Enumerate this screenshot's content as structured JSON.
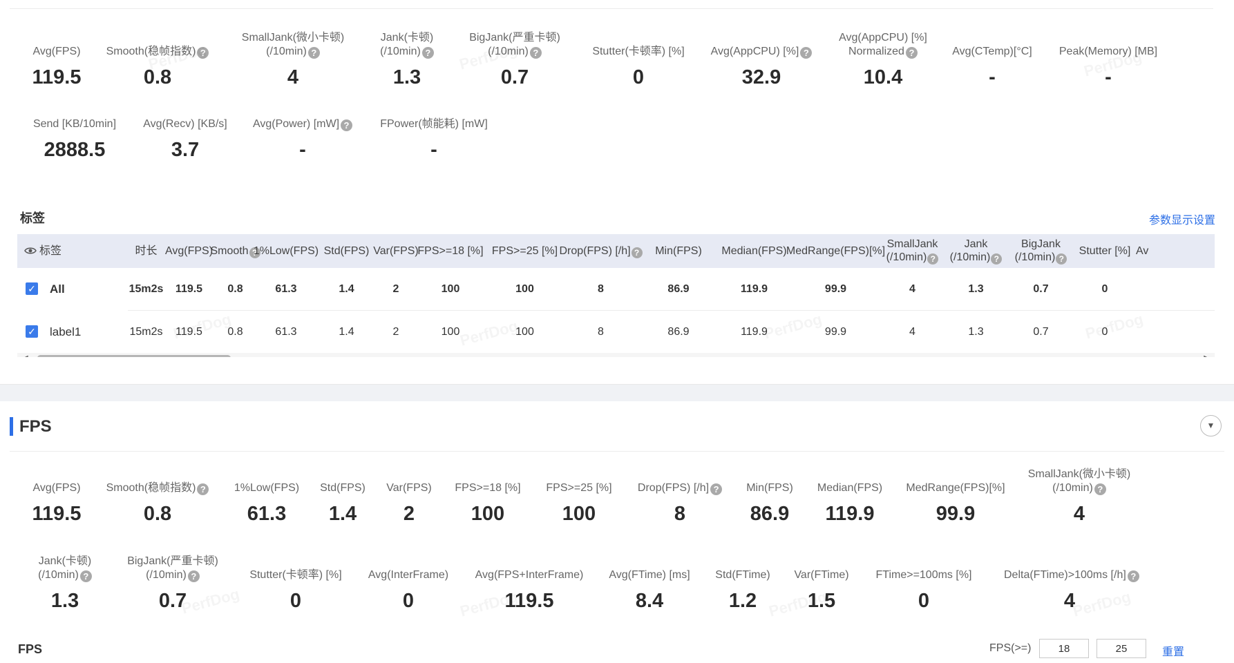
{
  "summary": [
    {
      "label": "Avg(FPS)",
      "value": "119.5"
    },
    {
      "label": "Smooth(稳帧指数)",
      "help": true,
      "value": "0.8"
    },
    {
      "label": "SmallJank(微小卡顿)",
      "label2": "(/10min)",
      "help": true,
      "value": "4"
    },
    {
      "label": "Jank(卡顿)",
      "label2": "(/10min)",
      "help": true,
      "value": "1.3"
    },
    {
      "label": "BigJank(严重卡顿)",
      "label2": "(/10min)",
      "help": true,
      "value": "0.7"
    },
    {
      "label": "Stutter(卡顿率) [%]",
      "value": "0"
    },
    {
      "label": "Avg(AppCPU) [%]",
      "help": true,
      "value": "32.9"
    },
    {
      "label": "Avg(AppCPU) [%]",
      "label2": "Normalized",
      "help": true,
      "value": "10.4"
    },
    {
      "label": "Avg(CTemp)[°C]",
      "value": "-"
    },
    {
      "label": "Peak(Memory) [MB]",
      "value": "-"
    },
    {
      "label": "Send [KB/10min]",
      "value": "2888.5"
    },
    {
      "label": "Avg(Recv) [KB/s]",
      "value": "3.7"
    },
    {
      "label": "Avg(Power) [mW]",
      "help": true,
      "value": "-"
    },
    {
      "label": "FPower(帧能耗) [mW]",
      "value": "-"
    }
  ],
  "watermark": "PerfDog",
  "tags": {
    "title": "标签",
    "settings_link": "参数显示设置",
    "eye_icon": "eye-icon",
    "columns": [
      "标签",
      "时长",
      "Avg(FPS)",
      "Smooth",
      "1%Low(FPS)",
      "Std(FPS)",
      "Var(FPS)",
      "FPS>=18 [%]",
      "FPS>=25 [%]",
      "Drop(FPS) [/h]",
      "Min(FPS)",
      "Median(FPS)",
      "MedRange(FPS)[%]",
      "SmallJank",
      "Jank",
      "BigJank",
      "Stutter [%]",
      "Av"
    ],
    "column_sub": {
      "SmallJank": "(/10min)",
      "Jank": "(/10min)",
      "BigJank": "(/10min)"
    },
    "rows": [
      {
        "name": "All",
        "checked": true,
        "values": [
          "15m2s",
          "119.5",
          "0.8",
          "61.3",
          "1.4",
          "2",
          "100",
          "100",
          "8",
          "86.9",
          "119.9",
          "99.9",
          "4",
          "1.3",
          "0.7",
          "0"
        ]
      },
      {
        "name": "label1",
        "checked": true,
        "values": [
          "15m2s",
          "119.5",
          "0.8",
          "61.3",
          "1.4",
          "2",
          "100",
          "100",
          "8",
          "86.9",
          "119.9",
          "99.9",
          "4",
          "1.3",
          "0.7",
          "0"
        ]
      }
    ]
  },
  "fps_section": {
    "title": "FPS",
    "metrics": [
      {
        "label": "Avg(FPS)",
        "value": "119.5"
      },
      {
        "label": "Smooth(稳帧指数)",
        "help": true,
        "value": "0.8"
      },
      {
        "label": "1%Low(FPS)",
        "value": "61.3"
      },
      {
        "label": "Std(FPS)",
        "value": "1.4"
      },
      {
        "label": "Var(FPS)",
        "value": "2"
      },
      {
        "label": "FPS>=18 [%]",
        "value": "100"
      },
      {
        "label": "FPS>=25 [%]",
        "value": "100"
      },
      {
        "label": "Drop(FPS) [/h]",
        "help": true,
        "value": "8"
      },
      {
        "label": "Min(FPS)",
        "value": "86.9"
      },
      {
        "label": "Median(FPS)",
        "value": "119.9"
      },
      {
        "label": "MedRange(FPS)[%]",
        "value": "99.9"
      },
      {
        "label": "SmallJank(微小卡顿)",
        "label2": "(/10min)",
        "help": true,
        "value": "4"
      },
      {
        "label": "Jank(卡顿)",
        "label2": "(/10min)",
        "help": true,
        "value": "1.3"
      },
      {
        "label": "BigJank(严重卡顿)",
        "label2": "(/10min)",
        "help": true,
        "value": "0.7"
      },
      {
        "label": "Stutter(卡顿率) [%]",
        "value": "0"
      },
      {
        "label": "Avg(InterFrame)",
        "value": "0"
      },
      {
        "label": "Avg(FPS+InterFrame)",
        "value": "119.5"
      },
      {
        "label": "Avg(FTime) [ms]",
        "value": "8.4"
      },
      {
        "label": "Std(FTime)",
        "value": "1.2"
      },
      {
        "label": "Var(FTime)",
        "value": "1.5"
      },
      {
        "label": "FTime>=100ms [%]",
        "value": "0"
      },
      {
        "label": "Delta(FTime)>100ms [/h]",
        "help": true,
        "value": "4"
      }
    ],
    "chart_title": "FPS",
    "threshold_label": "FPS(>=)",
    "threshold_1": "18",
    "threshold_2": "25",
    "reset_link": "重置"
  }
}
